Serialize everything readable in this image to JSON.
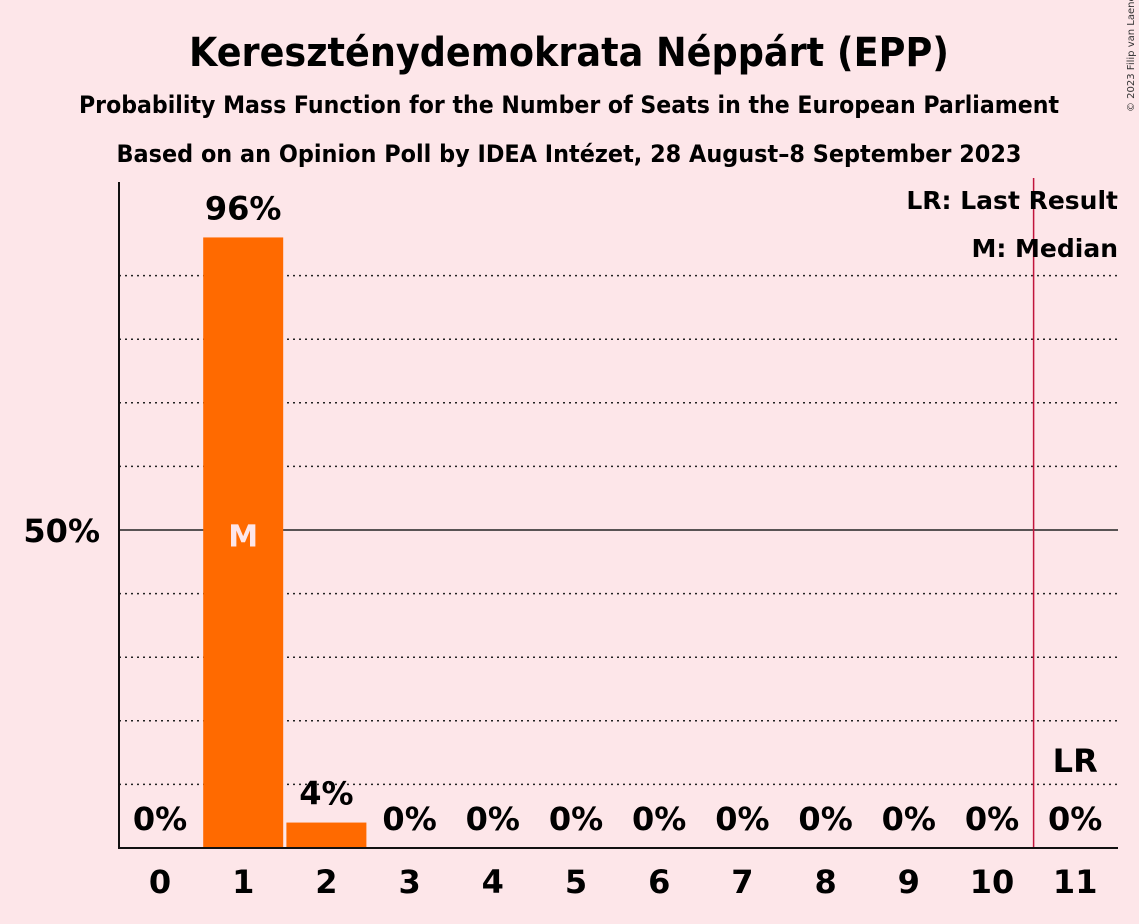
{
  "chart_data": {
    "type": "bar",
    "title": "Kereszténydemokrata Néppárt (EPP)",
    "subtitle": "Probability Mass Function for the Number of Seats in the European Parliament",
    "subtitle2": "Based on an Opinion Poll by IDEA Intézet, 28 August–8 September 2023",
    "copyright": "© 2023 Filip van Laenen",
    "categories": [
      "0",
      "1",
      "2",
      "3",
      "4",
      "5",
      "6",
      "7",
      "8",
      "9",
      "10",
      "11"
    ],
    "values": [
      0,
      96,
      4,
      0,
      0,
      0,
      0,
      0,
      0,
      0,
      0,
      0
    ],
    "value_labels": [
      "0%",
      "96%",
      "4%",
      "0%",
      "0%",
      "0%",
      "0%",
      "0%",
      "0%",
      "0%",
      "0%",
      "0%"
    ],
    "ylim": [
      0,
      100
    ],
    "y_tick_label": "50%",
    "y_tick_value": 50,
    "gridlines_dotted": [
      10,
      20,
      30,
      40,
      60,
      70,
      80,
      90
    ],
    "median_seat": 1,
    "median_label": "M",
    "last_result_seat": 11,
    "last_result_label": "LR",
    "legend": [
      "LR: Last Result",
      "M: Median"
    ],
    "legend_position": "top-right",
    "bar_color": "#ff6a00",
    "last_result_line_color": "#c0143c",
    "background_color": "#fde6e9"
  }
}
